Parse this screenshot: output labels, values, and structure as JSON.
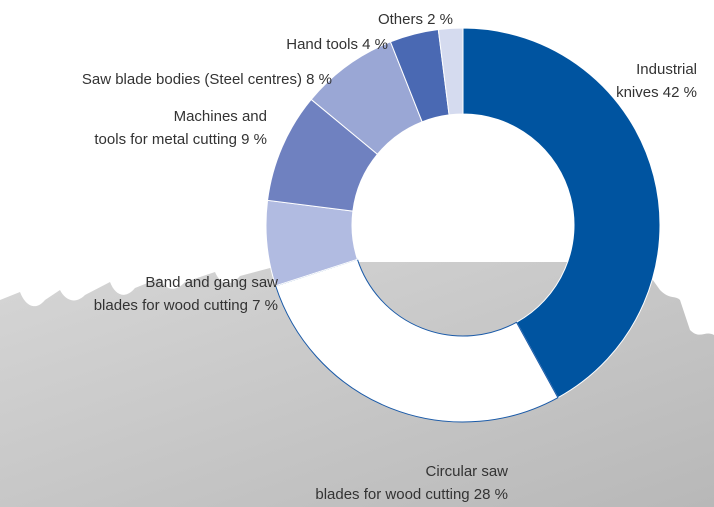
{
  "chart_data": {
    "type": "donut",
    "categories": [
      "Industrial\nknives",
      "Circular saw\nblades for wood cutting",
      "Band and gang saw\nblades for wood cutting",
      "Machines and\ntools for metal cutting",
      "Saw blade bodies (Steel centres)",
      "Hand tools",
      "Others"
    ],
    "values": [
      42,
      28,
      7,
      9,
      8,
      4,
      2
    ],
    "value_labels": [
      "42 %",
      "28 %",
      "7 %",
      "9 %",
      "8 %",
      "4 %",
      "2 %"
    ],
    "colors": [
      "#0054a0",
      "#ffffff",
      "#b1bbe1",
      "#6f81c0",
      "#9aa7d5",
      "#4a69b3",
      "#d5dbef"
    ]
  }
}
